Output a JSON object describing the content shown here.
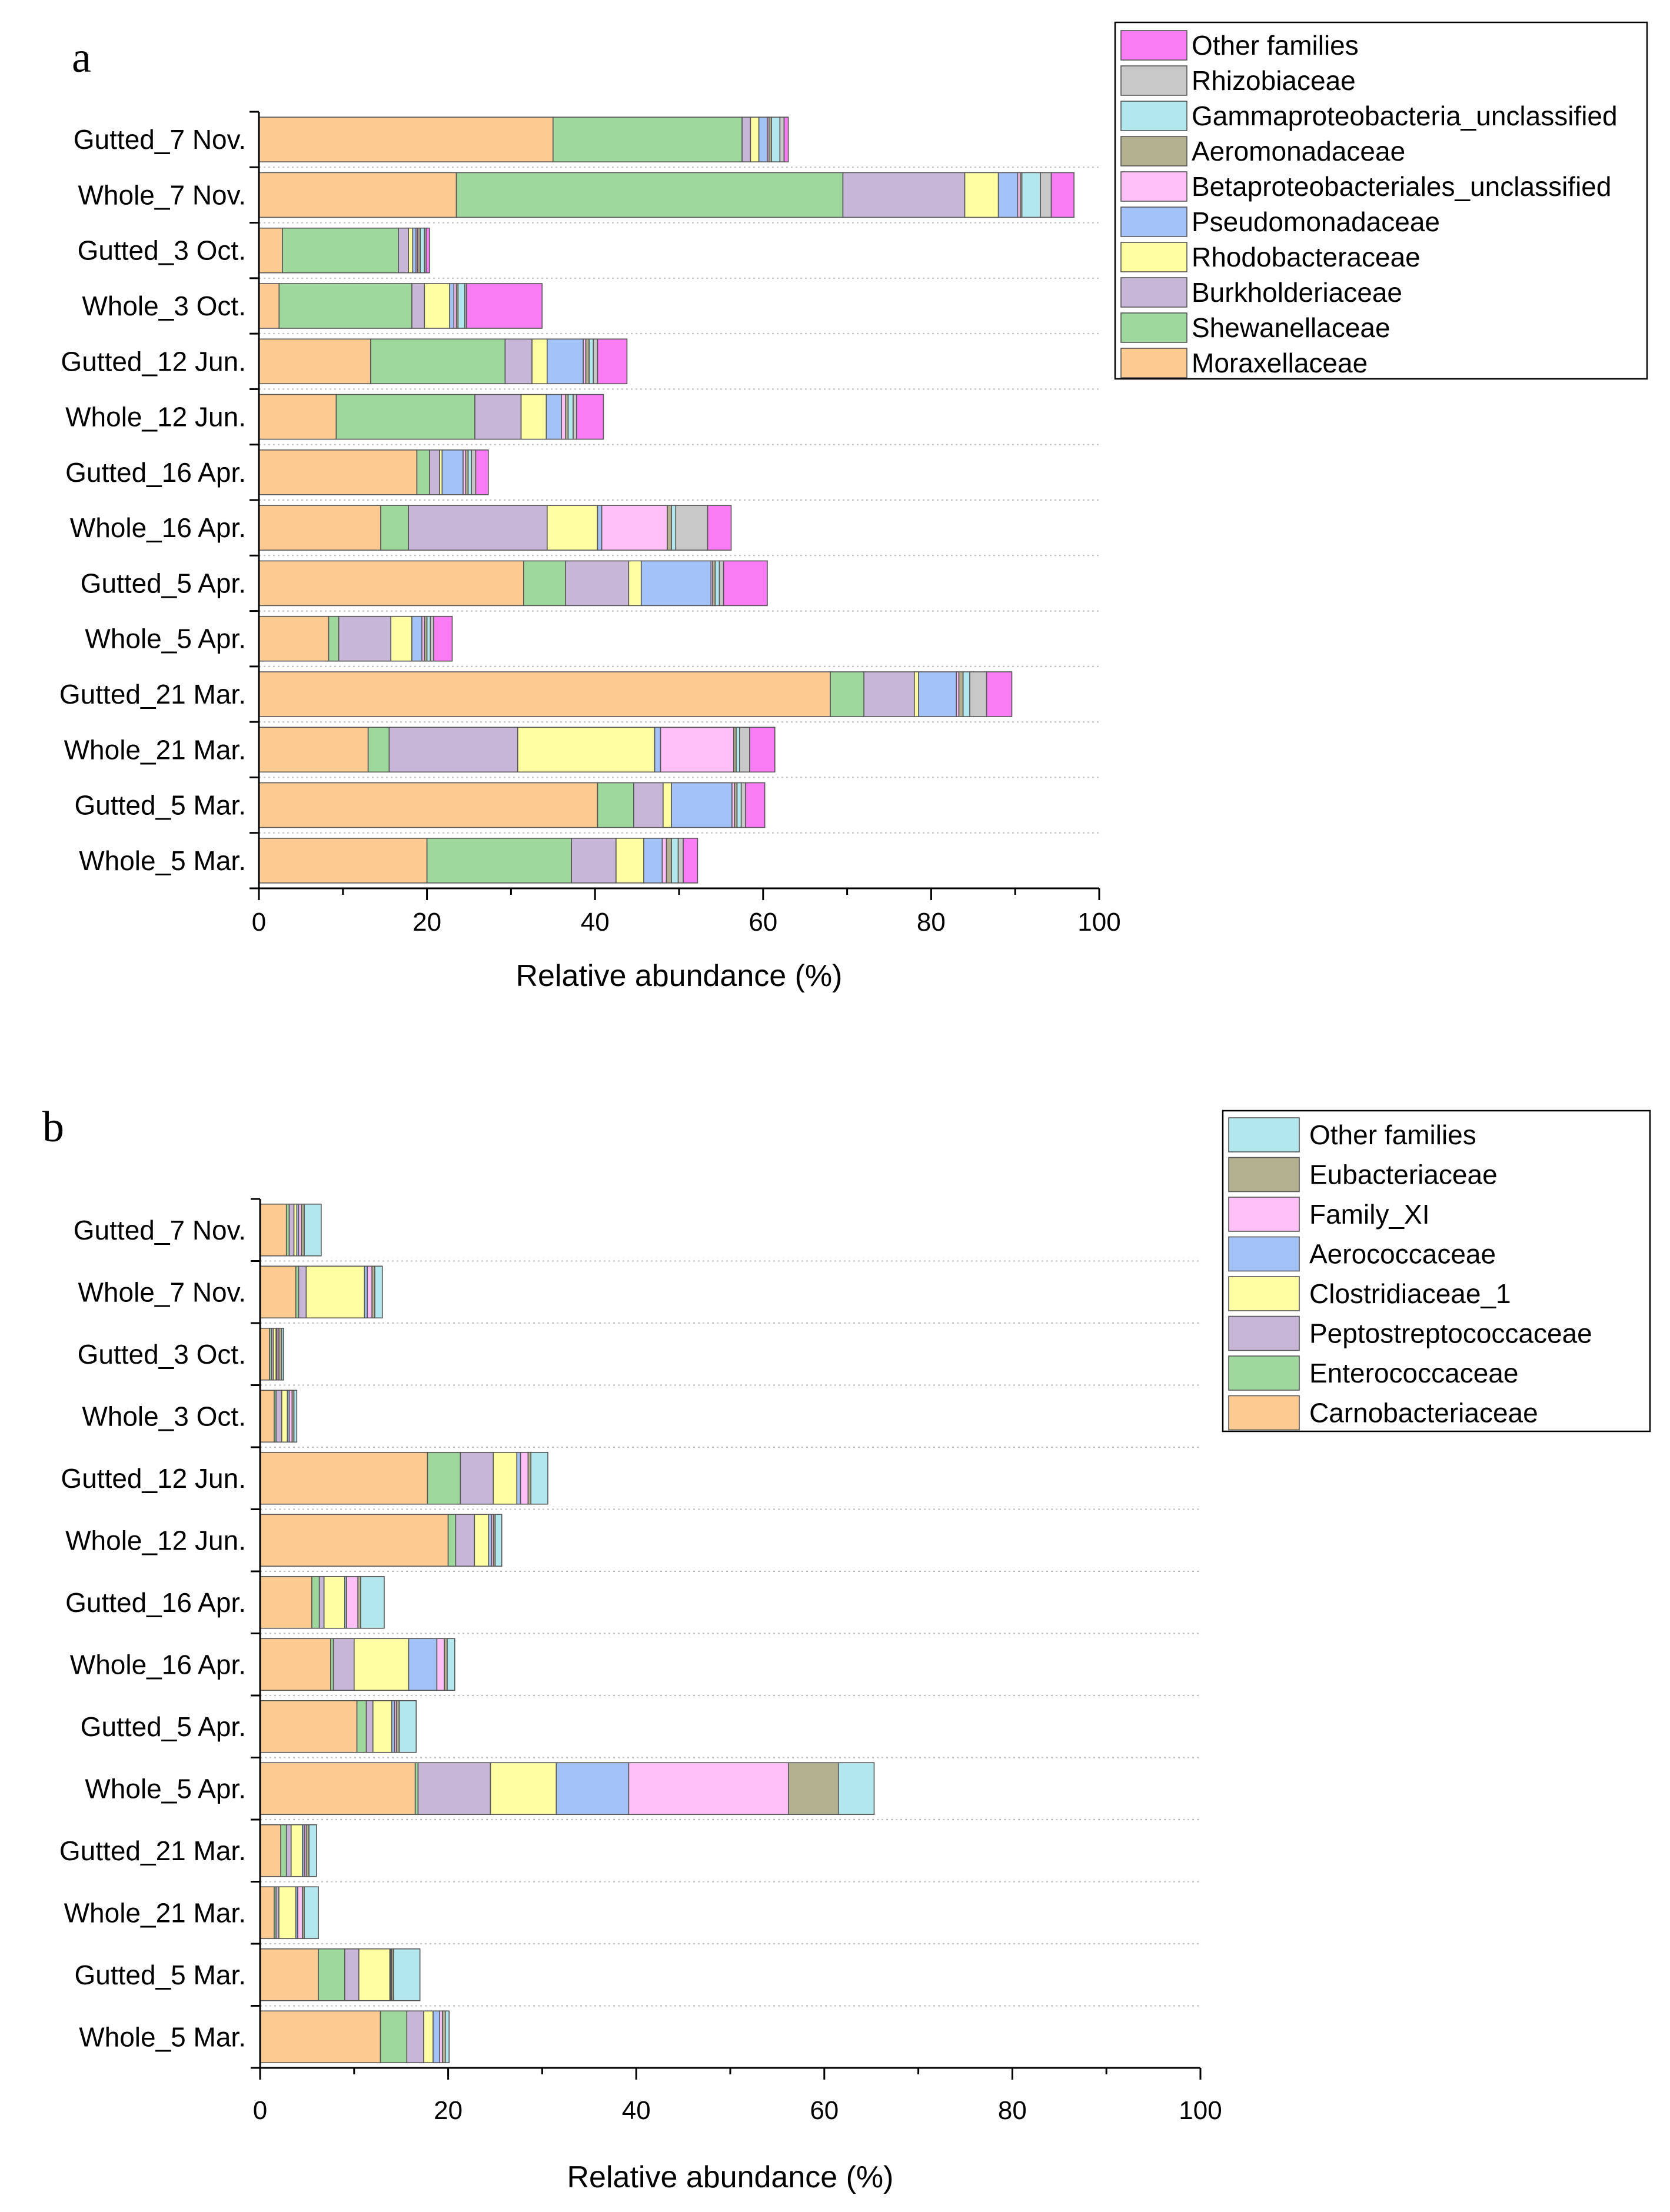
{
  "chart_data": [
    {
      "panel": "a",
      "type": "bar",
      "orientation": "horizontal",
      "stacked": true,
      "categories": [
        "Gutted_7 Nov.",
        "Whole_7 Nov.",
        "Gutted_3 Oct.",
        "Whole_3 Oct.",
        "Gutted_12 Jun.",
        "Whole_12 Jun.",
        "Gutted_16 Apr.",
        "Whole_16 Apr.",
        "Gutted_5 Apr.",
        "Whole_5 Apr.",
        "Gutted_21 Mar.",
        "Whole_21 Mar.",
        "Gutted_5 Mar.",
        "Whole_5 Mar."
      ],
      "xlabel": "Relative abundance (%)",
      "xlim": [
        0,
        100
      ],
      "xticks": [
        "0",
        "20",
        "40",
        "60",
        "80",
        "100"
      ],
      "grid": "dotted horizontal",
      "legend_position": "top-right",
      "series": [
        {
          "name": "Moraxellaceae",
          "color": "#FDCB92",
          "values": [
            35,
            23.5,
            2.8,
            2.4,
            13.3,
            9.2,
            18.8,
            14.5,
            31.5,
            8.3,
            68,
            13,
            40.3,
            20
          ]
        },
        {
          "name": "Shewanellaceae",
          "color": "#9ED89C",
          "values": [
            22.5,
            46,
            13.8,
            15.8,
            16,
            16.5,
            1.5,
            3.3,
            5,
            1.2,
            4,
            2.5,
            4.3,
            17.2
          ]
        },
        {
          "name": "Burkholderiaceae",
          "color": "#C8B6D9",
          "values": [
            1,
            14.5,
            1.2,
            1.5,
            3.2,
            5.5,
            1.2,
            16.5,
            7.5,
            6.2,
            6,
            15.3,
            3.5,
            5.3
          ]
        },
        {
          "name": "Rhodobacteraceae",
          "color": "#FFFEA3",
          "values": [
            1,
            4,
            0.5,
            3,
            1.8,
            3,
            0.3,
            6,
            1.5,
            2.5,
            0.5,
            16.3,
            1,
            3.3
          ]
        },
        {
          "name": "Pseudomonadaceae",
          "color": "#A3C2F7",
          "values": [
            1,
            2.3,
            0.4,
            0.5,
            4.3,
            1.8,
            2.5,
            0.5,
            8.3,
            1.2,
            4.5,
            0.7,
            7.2,
            2.2
          ]
        },
        {
          "name": "Betaproteobacteriales_unclassified",
          "color": "#FFC0F8",
          "values": [
            0.2,
            0.3,
            0.2,
            0.3,
            0.3,
            0.5,
            0.3,
            7.8,
            0.2,
            0.3,
            0.3,
            8.7,
            0.3,
            0.5
          ]
        },
        {
          "name": "Aeromonadaceae",
          "color": "#B3B190",
          "values": [
            0.3,
            0.2,
            0.3,
            0.2,
            0.4,
            0.3,
            0.3,
            0.5,
            0.3,
            0.3,
            0.5,
            0.3,
            0.3,
            0.6
          ]
        },
        {
          "name": "Gammaproteobacteria_unclassified",
          "color": "#B3E7EE",
          "values": [
            1,
            2.2,
            0.5,
            0.8,
            0.5,
            0.6,
            0.4,
            0.5,
            0.5,
            0.4,
            0.8,
            0.4,
            0.5,
            0.8
          ]
        },
        {
          "name": "Rhizobiaceae",
          "color": "#C8C8C8",
          "values": [
            0.5,
            1.3,
            0.2,
            0.2,
            0.5,
            0.4,
            0.5,
            3.8,
            0.5,
            0.4,
            2,
            1.2,
            0.5,
            0.6
          ]
        },
        {
          "name": "Other families",
          "color": "#FA7CF5",
          "values": [
            0.5,
            2.7,
            0.4,
            9,
            3.5,
            3.2,
            1.5,
            2.8,
            5.2,
            2.2,
            3,
            3,
            2.3,
            1.7
          ]
        }
      ]
    },
    {
      "panel": "b",
      "type": "bar",
      "orientation": "horizontal",
      "stacked": true,
      "categories": [
        "Gutted_7 Nov.",
        "Whole_7 Nov.",
        "Gutted_3 Oct.",
        "Whole_3 Oct.",
        "Gutted_12 Jun.",
        "Whole_12 Jun.",
        "Gutted_16 Apr.",
        "Whole_16 Apr.",
        "Gutted_5 Apr.",
        "Whole_5 Apr.",
        "Gutted_21 Mar.",
        "Whole_21 Mar.",
        "Gutted_5 Mar.",
        "Whole_5 Mar."
      ],
      "xlabel": "Relative abundance (%)",
      "xlim": [
        0,
        100
      ],
      "xticks": [
        "0",
        "20",
        "40",
        "60",
        "80",
        "100"
      ],
      "grid": "dotted horizontal",
      "legend_position": "top-right",
      "series": [
        {
          "name": "Carnobacteriaceae",
          "color": "#FDCB92",
          "values": [
            2.8,
            3.8,
            1,
            1.5,
            17.8,
            20,
            5.5,
            7.5,
            10.3,
            16.5,
            2.2,
            1.5,
            6.2,
            12.8
          ]
        },
        {
          "name": "Enterococcaceae",
          "color": "#9ED89C",
          "values": [
            0.3,
            0.3,
            0.2,
            0.2,
            3.5,
            0.8,
            0.8,
            0.3,
            1,
            0.3,
            0.6,
            0.2,
            2.8,
            2.8
          ]
        },
        {
          "name": "Peptostreptococcaceae",
          "color": "#C8B6D9",
          "values": [
            0.5,
            0.8,
            0.2,
            0.6,
            3.5,
            2,
            0.5,
            2.2,
            0.7,
            7.7,
            0.5,
            0.3,
            1.5,
            1.8
          ]
        },
        {
          "name": "Clostridiaceae_1",
          "color": "#FFFEA3",
          "values": [
            0.3,
            6.2,
            0.3,
            0.6,
            2.5,
            1.5,
            2.2,
            5.8,
            2,
            7,
            1.2,
            1.8,
            3.3,
            1
          ]
        },
        {
          "name": "Aerococcaceae",
          "color": "#A3C2F7",
          "values": [
            0.2,
            0.3,
            0.1,
            0.2,
            0.4,
            0.3,
            0.2,
            3,
            0.3,
            7.7,
            0.2,
            0.2,
            0.1,
            0.7
          ]
        },
        {
          "name": "Family_XI",
          "color": "#FFC0F8",
          "values": [
            0.3,
            0.5,
            0.2,
            0.3,
            0.8,
            0.2,
            1.2,
            0.8,
            0.2,
            17,
            0.2,
            0.5,
            0.1,
            0.3
          ]
        },
        {
          "name": "Eubacteriaceae",
          "color": "#B3B190",
          "values": [
            0.3,
            0.3,
            0.3,
            0.2,
            0.3,
            0.2,
            0.3,
            0.3,
            0.3,
            5.3,
            0.3,
            0.2,
            0.2,
            0.3
          ]
        },
        {
          "name": "Other families",
          "color": "#B3E7EE",
          "values": [
            1.8,
            0.8,
            0.2,
            0.3,
            1.8,
            0.7,
            2.5,
            0.8,
            1.8,
            3.8,
            0.8,
            1.5,
            2.8,
            0.4
          ]
        }
      ]
    }
  ]
}
